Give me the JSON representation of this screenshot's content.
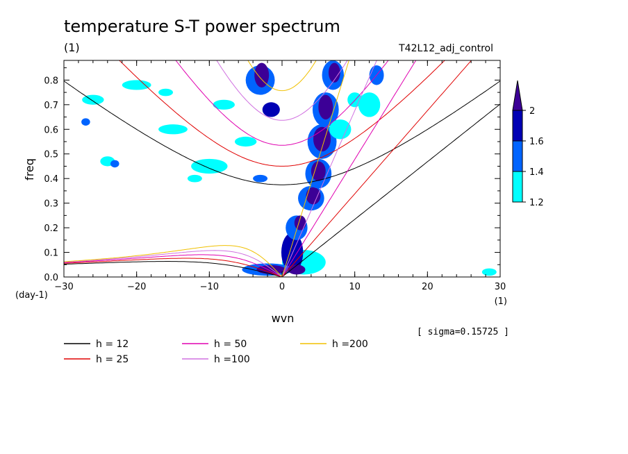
{
  "chart_data": {
    "type": "contour",
    "title": "temperature S-T power spectrum",
    "subtitle_left": "(1)",
    "subtitle_right": "T42L12_adj_control",
    "xlabel": "wvn",
    "ylabel": "freq",
    "x_unit": "(1)",
    "y_unit": "(day-1)",
    "xlim": [
      -30,
      30
    ],
    "ylim": [
      0,
      0.88
    ],
    "xticks": [
      -30,
      -20,
      -10,
      0,
      10,
      20,
      30
    ],
    "xtick_labels": [
      "−30",
      "−20",
      "−10",
      "0",
      "10",
      "20",
      "30"
    ],
    "yticks": [
      0,
      0.1,
      0.2,
      0.3,
      0.4,
      0.5,
      0.6,
      0.7,
      0.8
    ],
    "ytick_labels": [
      "0.0",
      "0.1",
      "0.2",
      "0.3",
      "0.4",
      "0.5",
      "0.6",
      "0.7",
      "0.8"
    ],
    "note": "[ sigma=0.15725 ]",
    "colorbar": {
      "levels": [
        1.2,
        1.4,
        1.6,
        2
      ],
      "labels": [
        "1.2",
        "1.4",
        "1.6",
        "2"
      ],
      "colors": [
        "#00ffff",
        "#0064ff",
        "#0000b4",
        "#3c0096"
      ]
    },
    "colors": {
      "level1": "#00ffff",
      "level2": "#0064ff",
      "level3": "#0000b4",
      "level4": "#3c0096"
    },
    "curves": [
      {
        "h": 12,
        "label": "h = 12",
        "color": "#000000"
      },
      {
        "h": 25,
        "label": "h = 25",
        "color": "#e00000"
      },
      {
        "h": 50,
        "label": "h = 50",
        "color": "#e000b0"
      },
      {
        "h": 100,
        "label": "h =100",
        "color": "#d070e0"
      },
      {
        "h": 200,
        "label": "h =200",
        "color": "#f0c000"
      }
    ],
    "blobs": [
      {
        "x": 3,
        "y": 0.06,
        "rx": 3,
        "ry": 0.05,
        "level": 1
      },
      {
        "x": 1.4,
        "y": 0.1,
        "rx": 1.5,
        "ry": 0.08,
        "level": 3
      },
      {
        "x": -2,
        "y": 0.03,
        "rx": 3.5,
        "ry": 0.025,
        "level": 2
      },
      {
        "x": -1.5,
        "y": 0.03,
        "rx": 2,
        "ry": 0.018,
        "level": 4
      },
      {
        "x": 2,
        "y": 0.2,
        "rx": 1.5,
        "ry": 0.05,
        "level": 2
      },
      {
        "x": 2.5,
        "y": 0.22,
        "rx": 0.8,
        "ry": 0.03,
        "level": 4
      },
      {
        "x": 4,
        "y": 0.32,
        "rx": 1.8,
        "ry": 0.05,
        "level": 2
      },
      {
        "x": 4.3,
        "y": 0.33,
        "rx": 1,
        "ry": 0.035,
        "level": 4
      },
      {
        "x": 5,
        "y": 0.42,
        "rx": 1.8,
        "ry": 0.06,
        "level": 2
      },
      {
        "x": 5,
        "y": 0.43,
        "rx": 1,
        "ry": 0.04,
        "level": 4
      },
      {
        "x": 5.5,
        "y": 0.55,
        "rx": 2,
        "ry": 0.07,
        "level": 2
      },
      {
        "x": 5.5,
        "y": 0.56,
        "rx": 1.2,
        "ry": 0.05,
        "level": 4
      },
      {
        "x": 6,
        "y": 0.68,
        "rx": 1.8,
        "ry": 0.07,
        "level": 2
      },
      {
        "x": 6,
        "y": 0.69,
        "rx": 1,
        "ry": 0.05,
        "level": 4
      },
      {
        "x": 7,
        "y": 0.82,
        "rx": 1.5,
        "ry": 0.06,
        "level": 2
      },
      {
        "x": 7.2,
        "y": 0.83,
        "rx": 0.8,
        "ry": 0.04,
        "level": 4
      },
      {
        "x": -3,
        "y": 0.8,
        "rx": 2,
        "ry": 0.06,
        "level": 2
      },
      {
        "x": -2.8,
        "y": 0.82,
        "rx": 1,
        "ry": 0.05,
        "level": 4
      },
      {
        "x": -1.5,
        "y": 0.68,
        "rx": 1.2,
        "ry": 0.03,
        "level": 3
      },
      {
        "x": 8,
        "y": 0.6,
        "rx": 1.5,
        "ry": 0.04,
        "level": 1
      },
      {
        "x": 10,
        "y": 0.72,
        "rx": 1,
        "ry": 0.03,
        "level": 1
      },
      {
        "x": 12,
        "y": 0.7,
        "rx": 1.5,
        "ry": 0.05,
        "level": 1
      },
      {
        "x": 13,
        "y": 0.82,
        "rx": 1,
        "ry": 0.04,
        "level": 2
      },
      {
        "x": -10,
        "y": 0.45,
        "rx": 2.5,
        "ry": 0.03,
        "level": 1
      },
      {
        "x": -5,
        "y": 0.55,
        "rx": 1.5,
        "ry": 0.02,
        "level": 1
      },
      {
        "x": -15,
        "y": 0.6,
        "rx": 2,
        "ry": 0.02,
        "level": 1
      },
      {
        "x": -20,
        "y": 0.78,
        "rx": 2,
        "ry": 0.02,
        "level": 1
      },
      {
        "x": -26,
        "y": 0.72,
        "rx": 1.5,
        "ry": 0.02,
        "level": 1
      },
      {
        "x": -24,
        "y": 0.47,
        "rx": 1,
        "ry": 0.02,
        "level": 1
      },
      {
        "x": -12,
        "y": 0.4,
        "rx": 1,
        "ry": 0.015,
        "level": 1
      },
      {
        "x": -8,
        "y": 0.7,
        "rx": 1.5,
        "ry": 0.02,
        "level": 1
      },
      {
        "x": -27,
        "y": 0.63,
        "rx": 0.6,
        "ry": 0.015,
        "level": 2
      },
      {
        "x": -23,
        "y": 0.46,
        "rx": 0.6,
        "ry": 0.015,
        "level": 2
      },
      {
        "x": -16,
        "y": 0.75,
        "rx": 1,
        "ry": 0.015,
        "level": 1
      },
      {
        "x": -3,
        "y": 0.4,
        "rx": 1,
        "ry": 0.015,
        "level": 2
      },
      {
        "x": 28.5,
        "y": 0.02,
        "rx": 1,
        "ry": 0.015,
        "level": 1
      },
      {
        "x": 2,
        "y": 0.03,
        "rx": 1.2,
        "ry": 0.02,
        "level": 4
      }
    ]
  }
}
